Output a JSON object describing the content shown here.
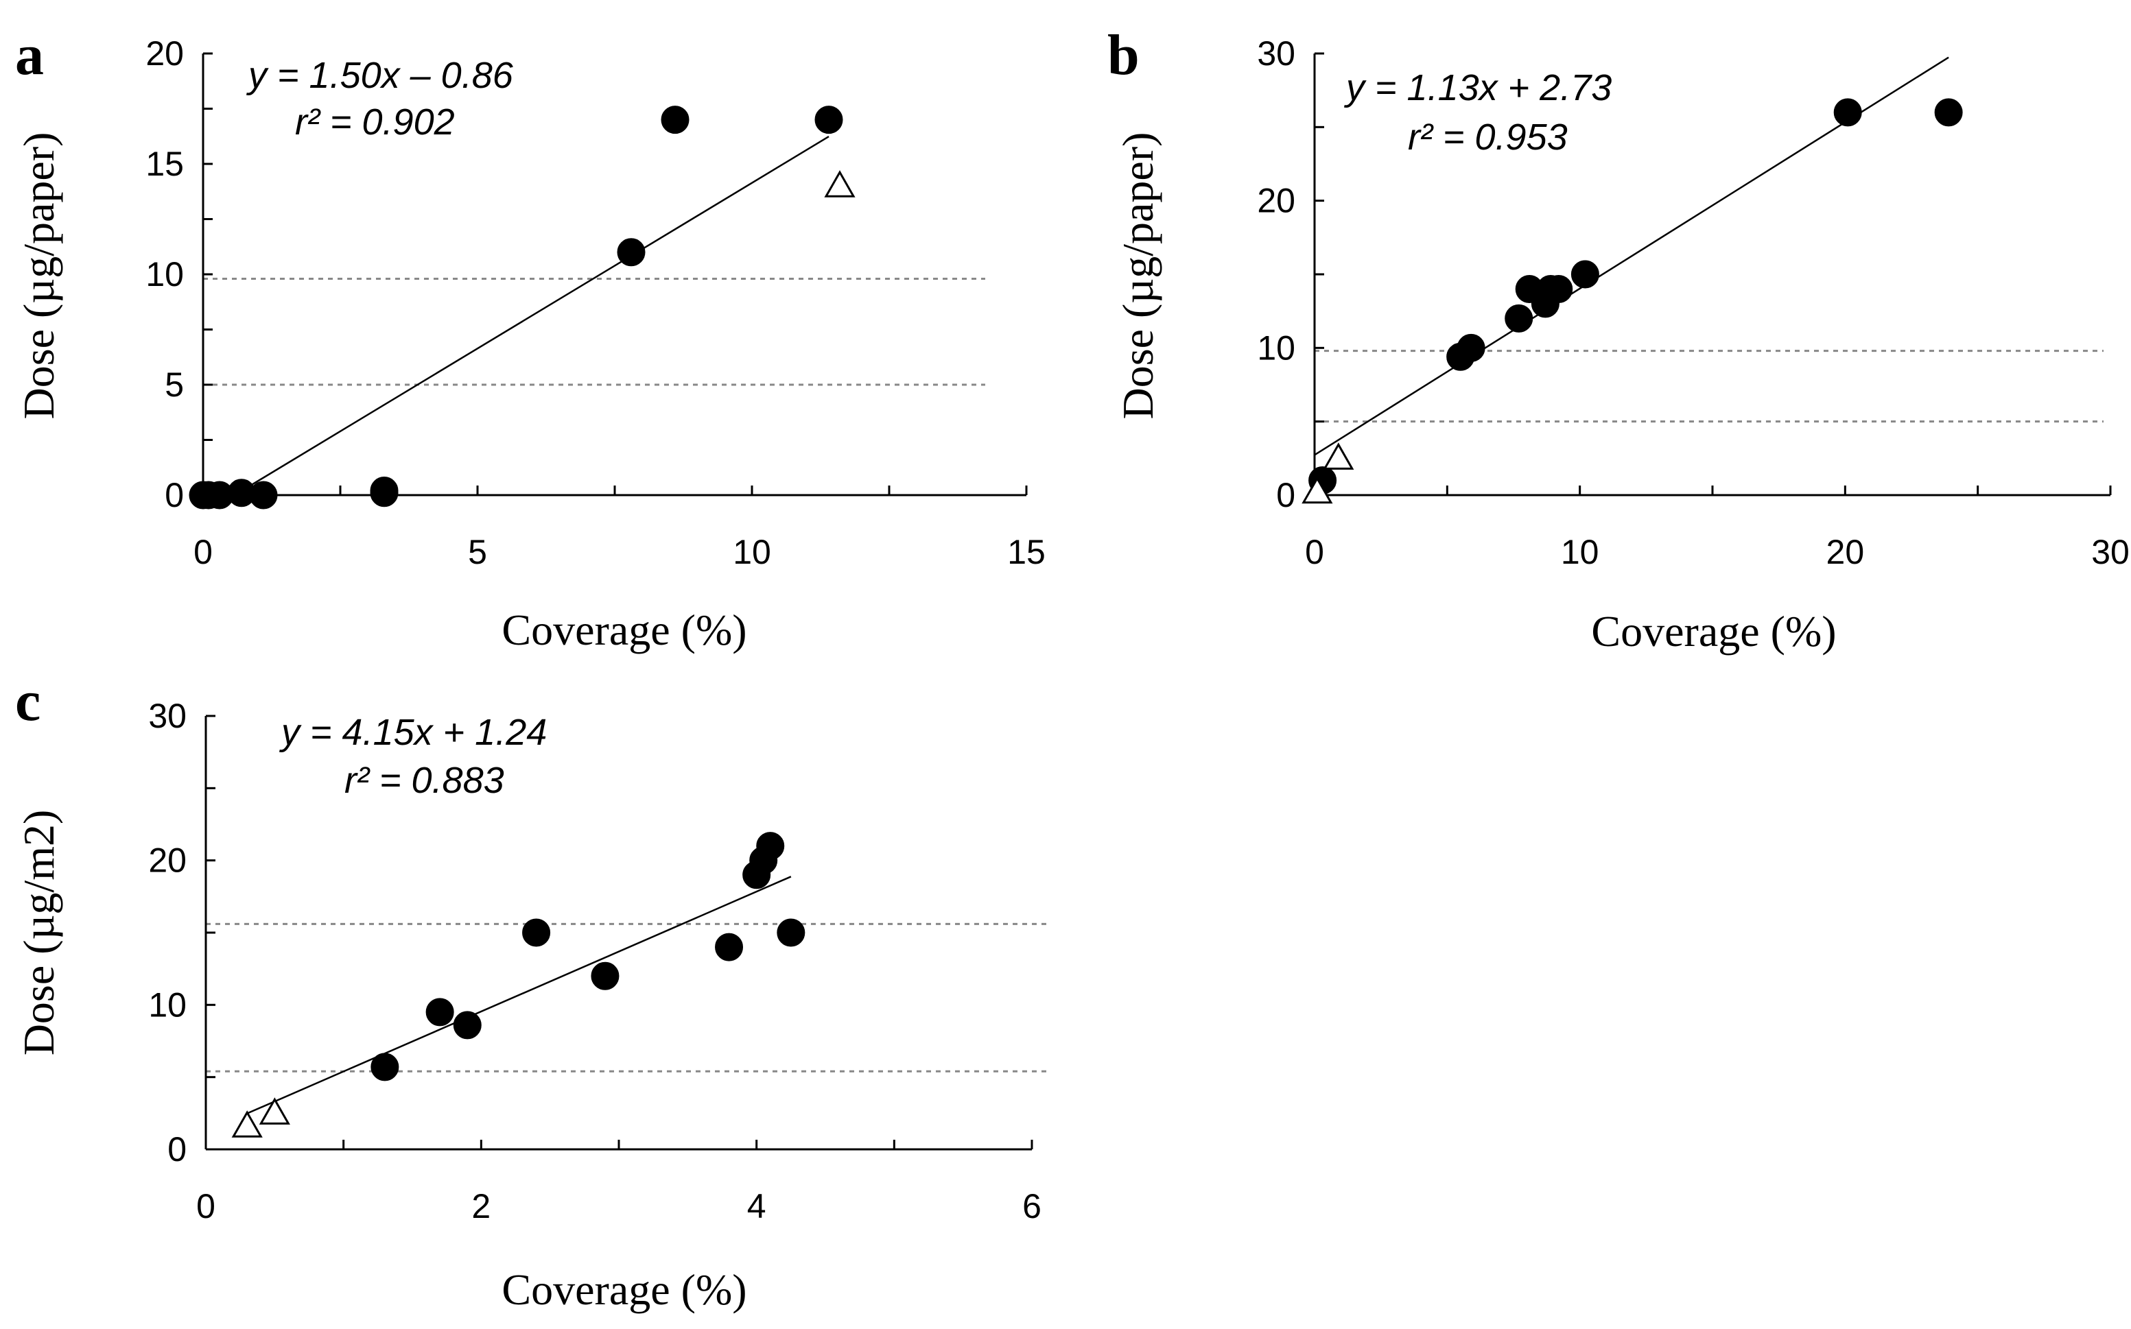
{
  "chart_data": [
    {
      "panel": "a",
      "type": "scatter",
      "xlabel": "Coverage (%)",
      "ylabel": "Dose (µg/paper)",
      "xlim": [
        0,
        15
      ],
      "ylim": [
        0,
        20
      ],
      "xticks": [
        "0",
        "5",
        "10",
        "15"
      ],
      "yticks": [
        "0",
        "5",
        "10",
        "15",
        "20"
      ],
      "equation": "y = 1.50x – 0.86",
      "r2": "r² = 0.902",
      "fit": {
        "slope": 1.5,
        "intercept": -0.86,
        "x_range": [
          0.6,
          11.4
        ]
      },
      "reference_lines": [
        5,
        9.8
      ],
      "series": [
        {
          "name": "filled",
          "marker": "circle",
          "points": [
            [
              0.0,
              0.0
            ],
            [
              0.1,
              0.0
            ],
            [
              0.3,
              0.0
            ],
            [
              0.7,
              0.1
            ],
            [
              1.1,
              0.0
            ],
            [
              3.3,
              0.2
            ],
            [
              3.3,
              0.1
            ],
            [
              7.8,
              11
            ],
            [
              8.6,
              17
            ],
            [
              11.4,
              17
            ]
          ]
        },
        {
          "name": "open",
          "marker": "triangle",
          "points": [
            [
              11.6,
              14
            ]
          ]
        }
      ]
    },
    {
      "panel": "b",
      "type": "scatter",
      "xlabel": "Coverage (%)",
      "ylabel": "Dose (µg/paper)",
      "xlim": [
        0,
        30
      ],
      "ylim": [
        0,
        30
      ],
      "xticks": [
        "0",
        "10",
        "20",
        "30"
      ],
      "yticks": [
        "0",
        "10",
        "20",
        "30"
      ],
      "equation": "y = 1.13x + 2.73",
      "r2": "r² = 0.953",
      "fit": {
        "slope": 1.13,
        "intercept": 2.73,
        "x_range": [
          0,
          23.9
        ]
      },
      "reference_lines": [
        5,
        9.8
      ],
      "series": [
        {
          "name": "filled",
          "marker": "circle",
          "points": [
            [
              0.3,
              1
            ],
            [
              5.5,
              9.4
            ],
            [
              5.9,
              10
            ],
            [
              7.7,
              12
            ],
            [
              8.1,
              14
            ],
            [
              8.7,
              13
            ],
            [
              8.9,
              14
            ],
            [
              9.2,
              14
            ],
            [
              10.2,
              15
            ],
            [
              20.1,
              26
            ],
            [
              23.9,
              26
            ]
          ]
        },
        {
          "name": "open",
          "marker": "triangle",
          "points": [
            [
              0.1,
              0.2
            ],
            [
              0.9,
              2.5
            ]
          ]
        }
      ]
    },
    {
      "panel": "c",
      "type": "scatter",
      "xlabel": "Coverage (%)",
      "ylabel": "Dose (µg/m2)",
      "xlim": [
        0,
        6
      ],
      "ylim": [
        0,
        30
      ],
      "xticks": [
        "0",
        "2",
        "4",
        "6"
      ],
      "yticks": [
        "0",
        "10",
        "20",
        "30"
      ],
      "equation": "y = 4.15x + 1.24",
      "r2": "r² = 0.883",
      "fit": {
        "slope": 4.15,
        "intercept": 1.24,
        "x_range": [
          0.3,
          4.25
        ]
      },
      "reference_lines": [
        5.4,
        15.6
      ],
      "series": [
        {
          "name": "filled",
          "marker": "circle",
          "points": [
            [
              1.3,
              5.7
            ],
            [
              1.7,
              9.5
            ],
            [
              1.9,
              8.6
            ],
            [
              2.4,
              15
            ],
            [
              2.9,
              12
            ],
            [
              3.8,
              14
            ],
            [
              4.0,
              19
            ],
            [
              4.05,
              20
            ],
            [
              4.1,
              21
            ],
            [
              4.25,
              15
            ]
          ]
        },
        {
          "name": "open",
          "marker": "triangle",
          "points": [
            [
              0.3,
              1.6
            ],
            [
              0.5,
              2.5
            ]
          ]
        }
      ]
    }
  ]
}
